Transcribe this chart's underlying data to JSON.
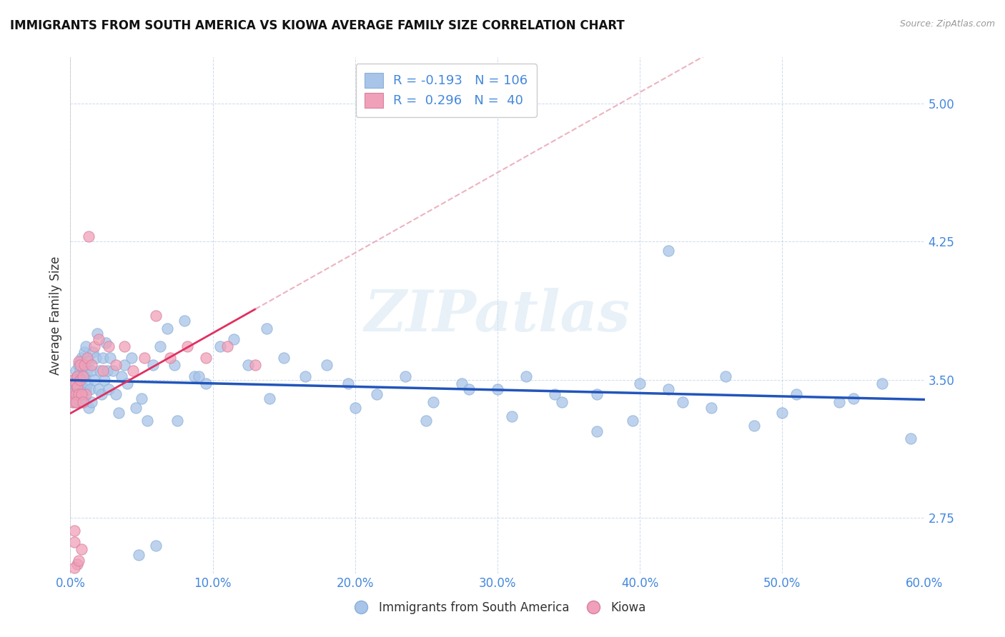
{
  "title": "IMMIGRANTS FROM SOUTH AMERICA VS KIOWA AVERAGE FAMILY SIZE CORRELATION CHART",
  "source": "Source: ZipAtlas.com",
  "ylabel": "Average Family Size",
  "xlim": [
    0.0,
    0.6
  ],
  "ylim": [
    2.45,
    5.25
  ],
  "yticks": [
    2.75,
    3.5,
    4.25,
    5.0
  ],
  "xticks": [
    0.0,
    0.1,
    0.2,
    0.3,
    0.4,
    0.5,
    0.6
  ],
  "xtick_labels": [
    "0.0%",
    "10.0%",
    "20.0%",
    "30.0%",
    "40.0%",
    "50.0%",
    "60.0%"
  ],
  "background_color": "#ffffff",
  "legend_R_blue": "-0.193",
  "legend_N_blue": "106",
  "legend_R_pink": "0.296",
  "legend_N_pink": "40",
  "blue_color": "#a8c4e8",
  "pink_color": "#f0a0b8",
  "blue_line_color": "#2255bb",
  "pink_line_color": "#e03060",
  "pink_dash_color": "#e8a0b0",
  "axis_color": "#4488dd",
  "watermark": "ZIPatlas",
  "blue_scatter_x": [
    0.001,
    0.002,
    0.002,
    0.003,
    0.003,
    0.003,
    0.004,
    0.004,
    0.004,
    0.005,
    0.005,
    0.005,
    0.006,
    0.006,
    0.006,
    0.007,
    0.007,
    0.007,
    0.008,
    0.008,
    0.008,
    0.009,
    0.009,
    0.01,
    0.01,
    0.01,
    0.011,
    0.011,
    0.012,
    0.012,
    0.013,
    0.013,
    0.014,
    0.015,
    0.015,
    0.016,
    0.017,
    0.018,
    0.019,
    0.02,
    0.021,
    0.022,
    0.023,
    0.024,
    0.025,
    0.026,
    0.027,
    0.028,
    0.03,
    0.032,
    0.034,
    0.036,
    0.038,
    0.04,
    0.043,
    0.046,
    0.05,
    0.054,
    0.058,
    0.063,
    0.068,
    0.073,
    0.08,
    0.087,
    0.095,
    0.105,
    0.115,
    0.125,
    0.138,
    0.15,
    0.165,
    0.18,
    0.195,
    0.215,
    0.235,
    0.255,
    0.275,
    0.3,
    0.32,
    0.345,
    0.37,
    0.395,
    0.42,
    0.45,
    0.48,
    0.51,
    0.54,
    0.57,
    0.2,
    0.25,
    0.28,
    0.31,
    0.34,
    0.37,
    0.4,
    0.43,
    0.46,
    0.5,
    0.55,
    0.59,
    0.42,
    0.14,
    0.09,
    0.075,
    0.06,
    0.048
  ],
  "blue_scatter_y": [
    3.42,
    3.44,
    3.38,
    3.5,
    3.48,
    3.42,
    3.55,
    3.45,
    3.38,
    3.52,
    3.46,
    3.4,
    3.58,
    3.48,
    3.44,
    3.55,
    3.6,
    3.42,
    3.62,
    3.38,
    3.5,
    3.55,
    3.45,
    3.52,
    3.65,
    3.4,
    3.68,
    3.45,
    3.55,
    3.48,
    3.35,
    3.6,
    3.45,
    3.55,
    3.38,
    3.65,
    3.5,
    3.62,
    3.75,
    3.45,
    3.55,
    3.42,
    3.62,
    3.5,
    3.7,
    3.55,
    3.45,
    3.62,
    3.55,
    3.42,
    3.32,
    3.52,
    3.58,
    3.48,
    3.62,
    3.35,
    3.4,
    3.28,
    3.58,
    3.68,
    3.78,
    3.58,
    3.82,
    3.52,
    3.48,
    3.68,
    3.72,
    3.58,
    3.78,
    3.62,
    3.52,
    3.58,
    3.48,
    3.42,
    3.52,
    3.38,
    3.48,
    3.45,
    3.52,
    3.38,
    3.42,
    3.28,
    3.45,
    3.35,
    3.25,
    3.42,
    3.38,
    3.48,
    3.35,
    3.28,
    3.45,
    3.3,
    3.42,
    3.22,
    3.48,
    3.38,
    3.52,
    3.32,
    3.4,
    3.18,
    4.2,
    3.4,
    3.52,
    3.28,
    2.6,
    2.55
  ],
  "pink_scatter_x": [
    0.001,
    0.002,
    0.002,
    0.003,
    0.003,
    0.004,
    0.004,
    0.005,
    0.005,
    0.006,
    0.006,
    0.007,
    0.007,
    0.008,
    0.009,
    0.01,
    0.011,
    0.012,
    0.013,
    0.015,
    0.017,
    0.02,
    0.023,
    0.027,
    0.032,
    0.038,
    0.044,
    0.052,
    0.06,
    0.07,
    0.082,
    0.095,
    0.11,
    0.13,
    0.008,
    0.005,
    0.004,
    0.003,
    0.006,
    0.009
  ],
  "pink_scatter_y": [
    3.42,
    3.38,
    3.5,
    2.62,
    2.68,
    3.42,
    3.48,
    3.52,
    3.46,
    3.6,
    3.42,
    3.58,
    3.5,
    2.58,
    3.52,
    3.58,
    3.42,
    3.62,
    4.28,
    3.58,
    3.68,
    3.72,
    3.55,
    3.68,
    3.58,
    3.68,
    3.55,
    3.62,
    3.85,
    3.62,
    3.68,
    3.62,
    3.68,
    3.58,
    3.42,
    2.5,
    3.38,
    2.48,
    2.52,
    3.38
  ]
}
